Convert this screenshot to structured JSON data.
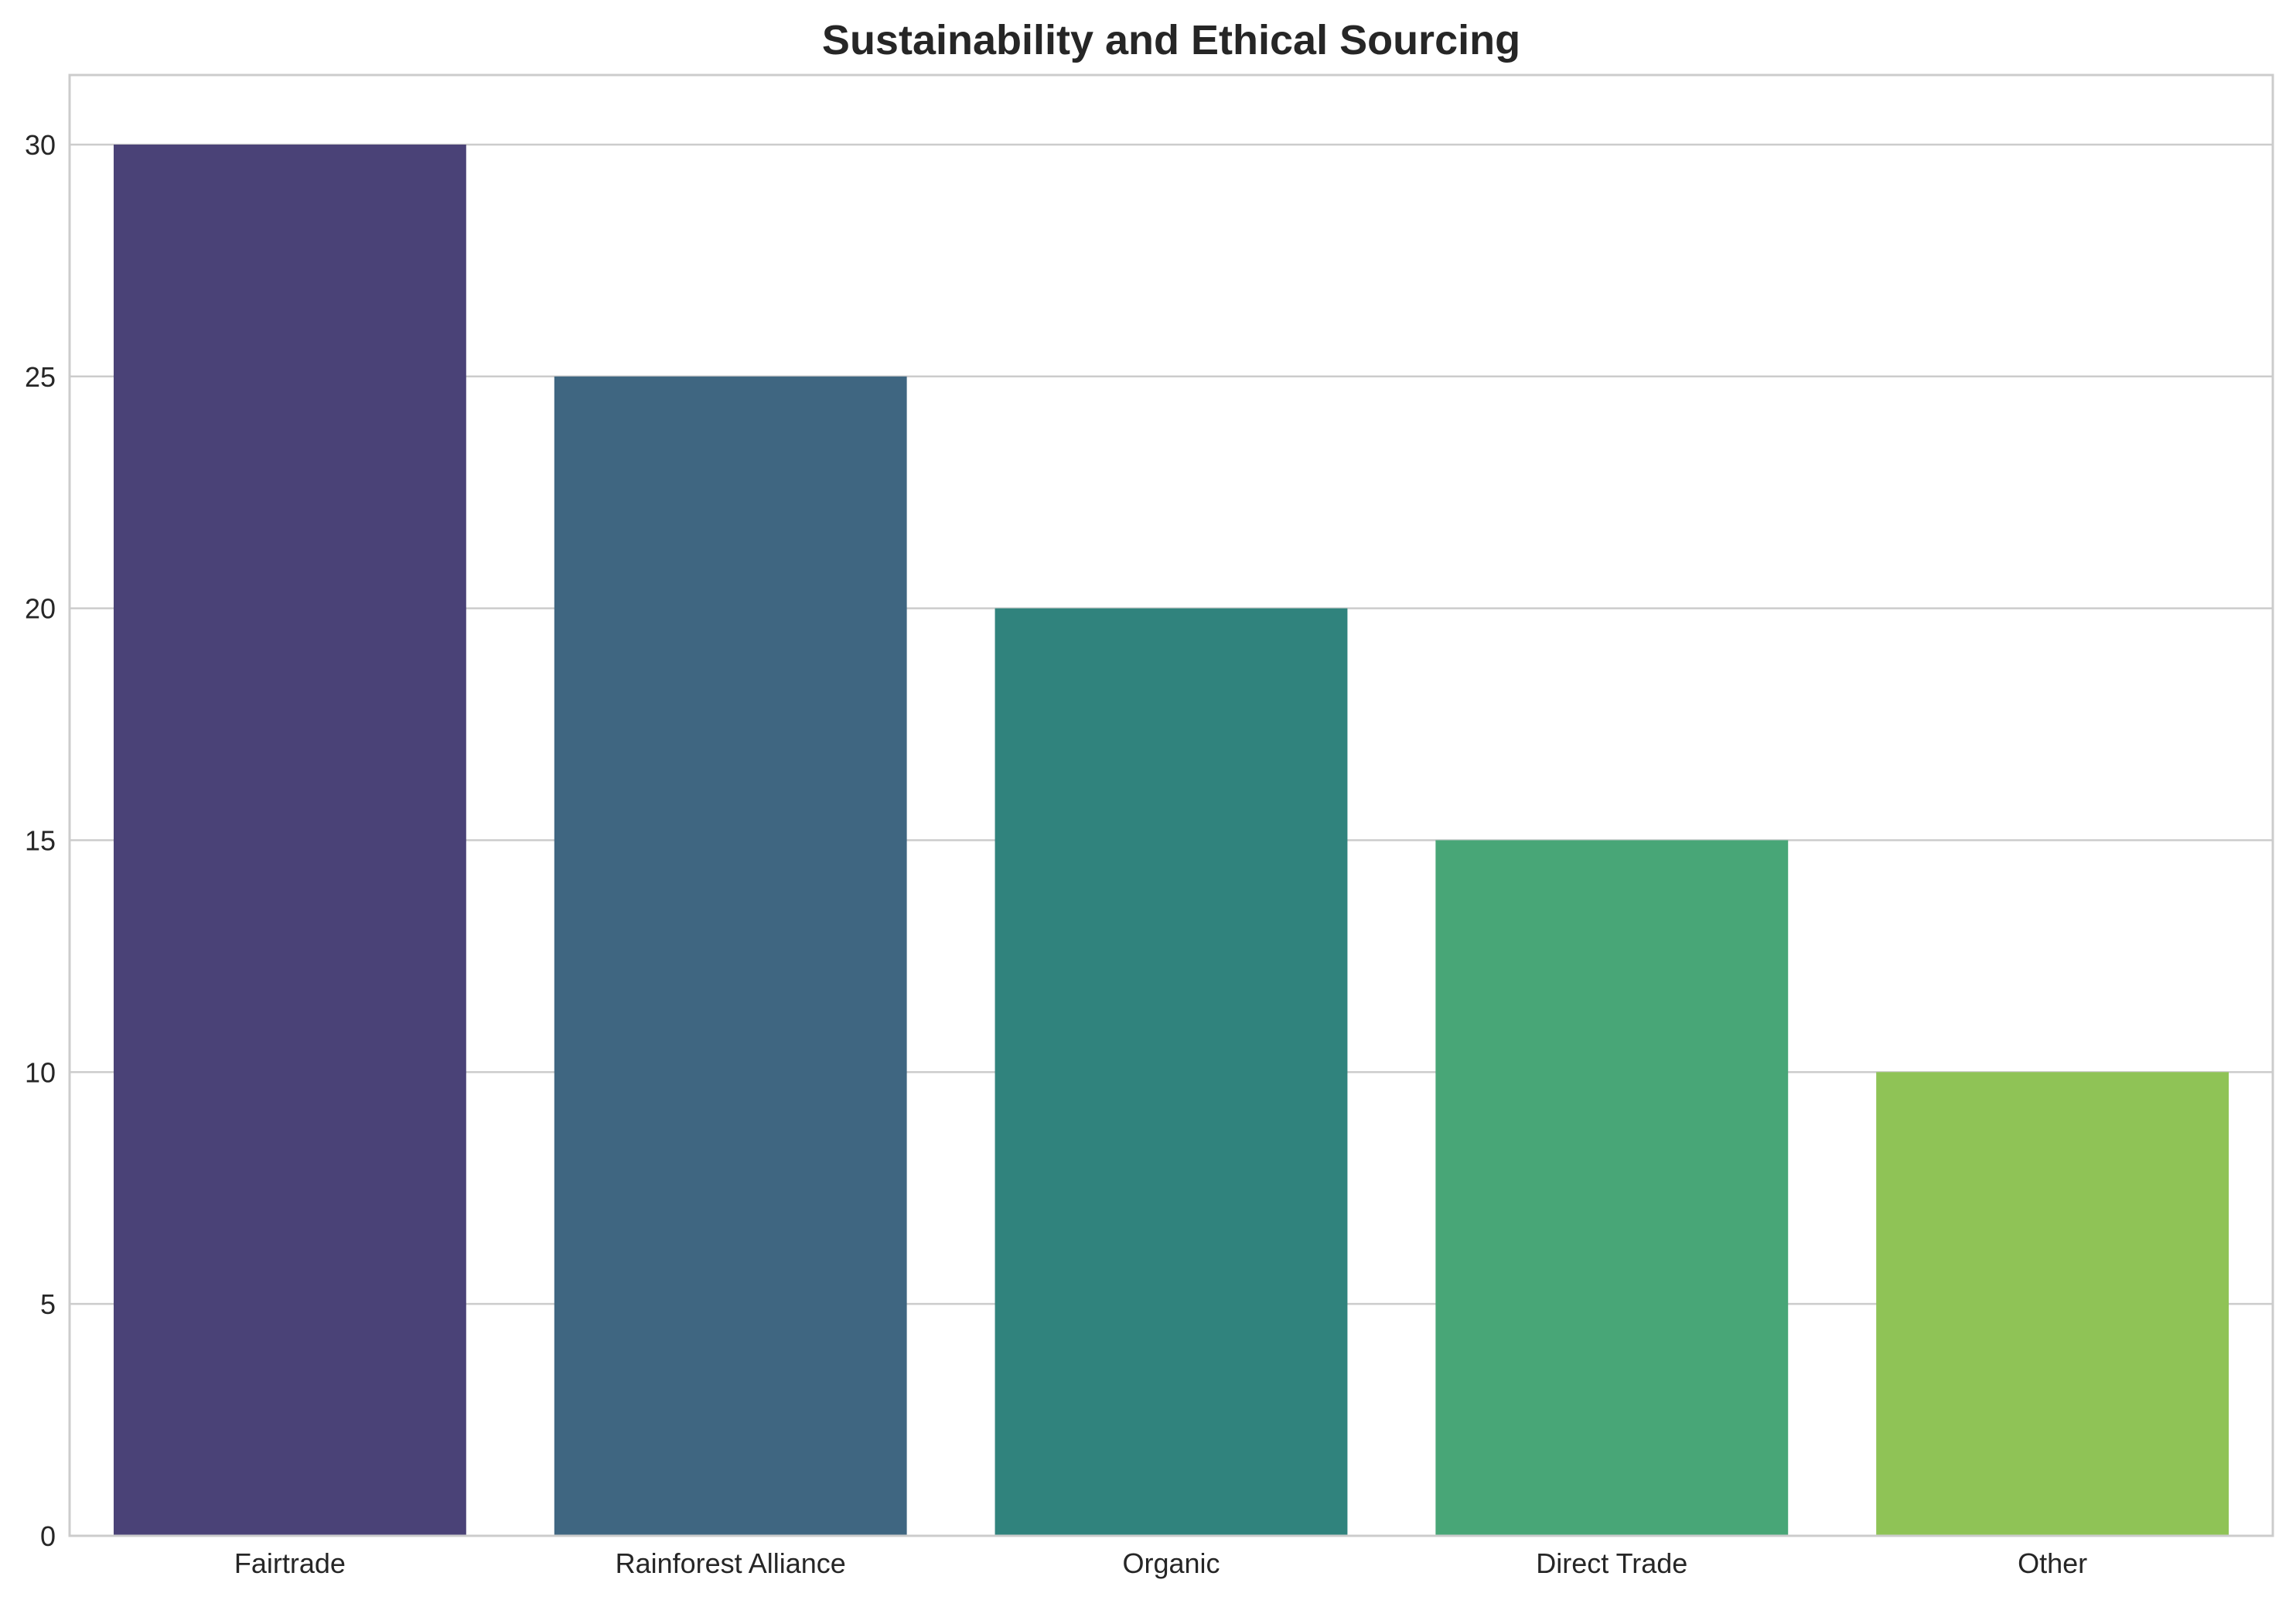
{
  "chart_data": {
    "type": "bar",
    "title": "Sustainability and Ethical Sourcing",
    "xlabel": "",
    "ylabel": "",
    "categories": [
      "Fairtrade",
      "Rainforest Alliance",
      "Organic",
      "Direct Trade",
      "Other"
    ],
    "values": [
      30,
      25,
      20,
      15,
      10
    ],
    "colors": [
      "#4a4277",
      "#3f6681",
      "#30837d",
      "#48a677",
      "#8fc356"
    ],
    "ylim": [
      0,
      31.5
    ],
    "yticks": [
      0,
      5,
      10,
      15,
      20,
      25,
      30
    ],
    "grid": true,
    "grid_axis": "y",
    "legend": "none"
  }
}
